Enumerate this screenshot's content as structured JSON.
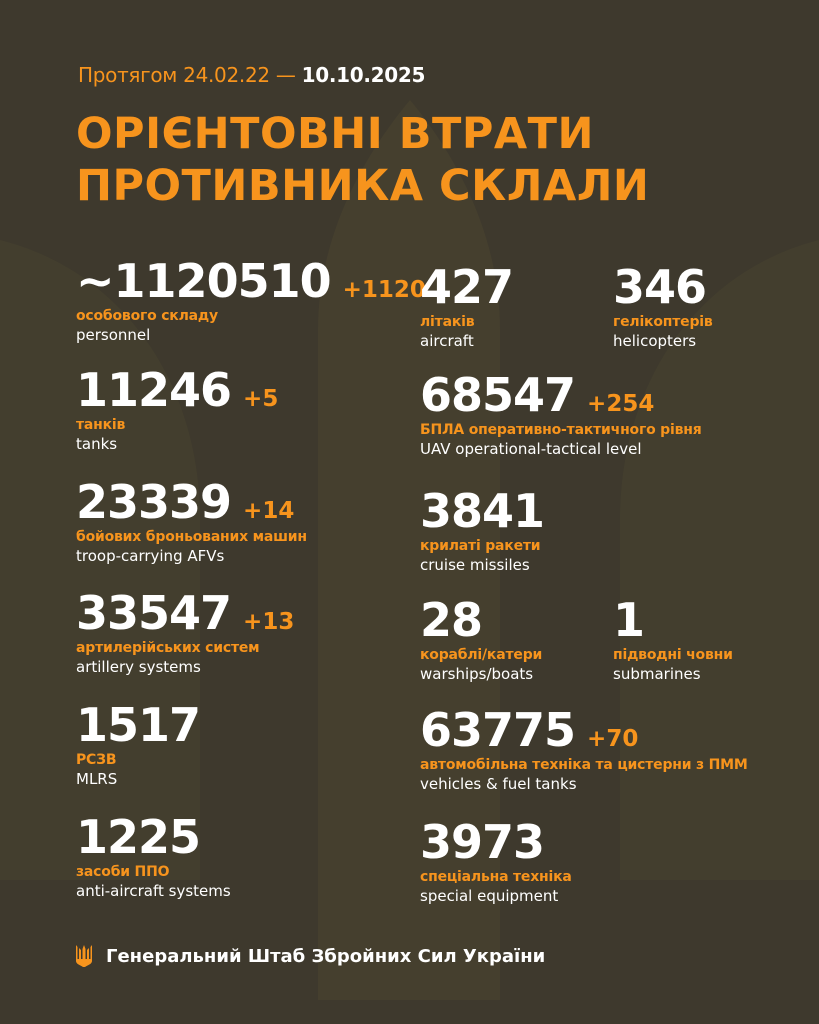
{
  "header": {
    "period_prefix": "Протягом 24.02.22 —",
    "period_end": "10.10.2025",
    "title_line1": "ОРІЄНТОВНІ ВТРАТИ",
    "title_line2": "ПРОТИВНИКА СКЛАЛИ"
  },
  "stats": [
    {
      "value": "~1120510",
      "delta": "+1120",
      "ua": "особового складу",
      "en": "personnel"
    },
    {
      "value": "11246",
      "delta": "+5",
      "ua": "танків",
      "en": "tanks"
    },
    {
      "value": "23339",
      "delta": "+14",
      "ua": "бойових броньованих машин",
      "en": "troop-carrying AFVs"
    },
    {
      "value": "33547",
      "delta": "+13",
      "ua": "артилерійських систем",
      "en": "artillery systems"
    },
    {
      "value": "1517",
      "delta": "",
      "ua": "РСЗВ",
      "en": "MLRS"
    },
    {
      "value": "1225",
      "delta": "",
      "ua": "засоби ППО",
      "en": "anti-aircraft systems"
    },
    {
      "value": "427",
      "delta": "",
      "ua": "літаків",
      "en": "aircraft"
    },
    {
      "value": "346",
      "delta": "",
      "ua": "гелікоптерів",
      "en": "helicopters"
    },
    {
      "value": "68547",
      "delta": "+254",
      "ua": "БПЛА оперативно-тактичного рівня",
      "en": "UAV operational-tactical level"
    },
    {
      "value": "3841",
      "delta": "",
      "ua": "крилаті ракети",
      "en": "cruise missiles"
    },
    {
      "value": "28",
      "delta": "",
      "ua": "кораблі/катери",
      "en": "warships/boats"
    },
    {
      "value": "1",
      "delta": "",
      "ua": "підводні човни",
      "en": "submarines"
    },
    {
      "value": "63775",
      "delta": "+70",
      "ua": "автомобільна техніка та цистерни з ПММ",
      "en": "vehicles & fuel tanks"
    },
    {
      "value": "3973",
      "delta": "",
      "ua": "спеціальна техніка",
      "en": "special equipment"
    }
  ],
  "footer": {
    "org": "Генеральний Штаб Збройних Сил України",
    "logo_icon": "trident-icon"
  },
  "colors": {
    "background": "#3e392d",
    "accent": "#f7941d",
    "text": "#ffffff"
  }
}
